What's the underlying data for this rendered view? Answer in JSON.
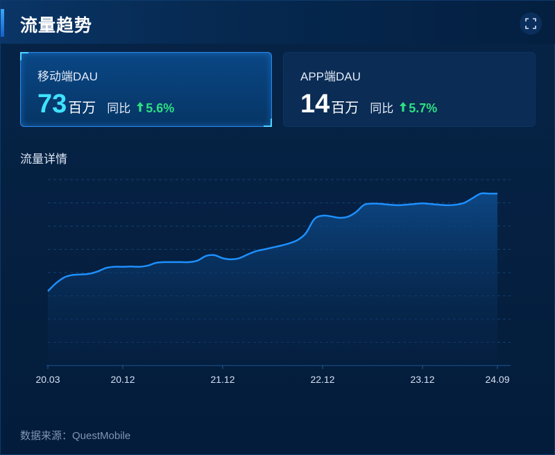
{
  "header": {
    "title": "流量趋势",
    "expand_icon": "fullscreen-icon"
  },
  "cards": [
    {
      "label": "移动端DAU",
      "value": "73",
      "unit": "百万",
      "yoy_label": "同比",
      "yoy_value": "5.6%",
      "trend": "up",
      "active": true
    },
    {
      "label": "APP端DAU",
      "value": "14",
      "unit": "百万",
      "yoy_label": "同比",
      "yoy_value": "5.7%",
      "trend": "up",
      "active": false
    }
  ],
  "section_title": "流量详情",
  "source": "数据来源：QuestMobile",
  "colors": {
    "accent": "#1e90ff",
    "highlight": "#3fe2ff",
    "up": "#2ee081",
    "background": "#031a36"
  },
  "chart_data": {
    "type": "area",
    "title": "",
    "xlabel": "",
    "ylabel": "",
    "grid": true,
    "x_ticks": [
      "20.03",
      "20.12",
      "21.12",
      "22.12",
      "23.12",
      "24.09"
    ],
    "ylim": [
      0,
      8
    ],
    "series": [
      {
        "x": [
          0,
          1,
          2,
          3,
          4,
          5,
          6,
          7,
          8,
          9,
          10,
          11,
          12,
          13,
          14,
          15,
          16,
          17,
          18,
          19,
          20,
          21,
          22,
          23,
          24,
          25,
          26,
          27,
          28,
          29,
          30,
          31,
          32,
          33,
          34,
          35,
          36,
          37,
          38,
          39,
          40,
          41,
          42,
          43,
          44,
          45,
          46,
          47,
          48,
          49,
          50,
          51,
          52,
          53,
          54
        ],
        "values": [
          3.2,
          3.55,
          3.8,
          3.9,
          3.92,
          3.95,
          4.05,
          4.2,
          4.25,
          4.25,
          4.26,
          4.25,
          4.3,
          4.42,
          4.45,
          4.45,
          4.45,
          4.45,
          4.52,
          4.72,
          4.75,
          4.62,
          4.57,
          4.62,
          4.78,
          4.92,
          5.0,
          5.08,
          5.16,
          5.26,
          5.4,
          5.7,
          6.3,
          6.45,
          6.42,
          6.36,
          6.4,
          6.6,
          6.92,
          6.97,
          6.96,
          6.92,
          6.9,
          6.92,
          6.95,
          6.98,
          6.95,
          6.92,
          6.9,
          6.92,
          7.0,
          7.2,
          7.4,
          7.4,
          7.4
        ]
      }
    ]
  }
}
